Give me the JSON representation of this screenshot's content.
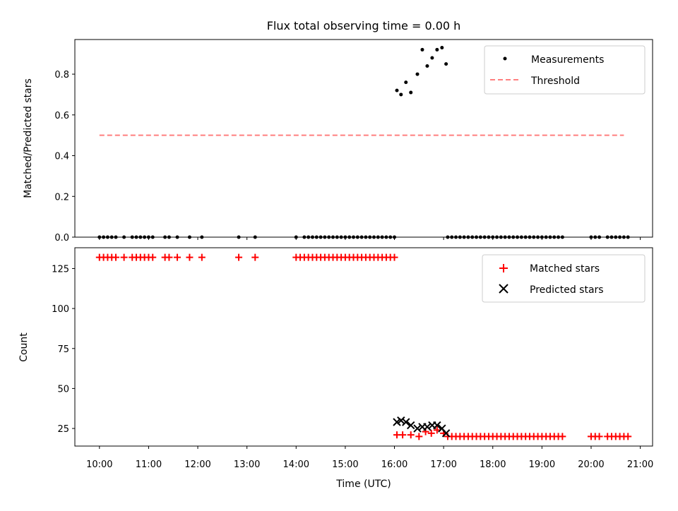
{
  "chart_data": [
    {
      "type": "scatter",
      "title": "Flux total observing time = 0.00 h",
      "xlabel": "",
      "ylabel": "Matched/Predicted stars",
      "xlim": [
        "09:30",
        "21:15"
      ],
      "ylim": [
        0.0,
        0.97
      ],
      "yticks": [
        "0.0",
        "0.2",
        "0.4",
        "0.6",
        "0.8"
      ],
      "legend": {
        "position": "top-right",
        "entries": [
          "Measurements",
          "Threshold"
        ]
      },
      "colors": {
        "measurements": "#000000",
        "threshold": "#ff7f7f"
      },
      "threshold": {
        "value": 0.5,
        "x_start": "10:00",
        "x_end": "20:40"
      },
      "measurements": {
        "x": [
          "10:00",
          "10:05",
          "10:10",
          "10:15",
          "10:20",
          "10:30",
          "10:40",
          "10:45",
          "10:50",
          "10:55",
          "11:00",
          "11:05",
          "11:20",
          "11:25",
          "11:35",
          "11:50",
          "12:05",
          "12:50",
          "13:10",
          "14:00",
          "14:10",
          "14:15",
          "14:20",
          "14:25",
          "14:30",
          "14:35",
          "14:40",
          "14:45",
          "14:50",
          "14:55",
          "15:00",
          "15:05",
          "15:10",
          "15:15",
          "15:20",
          "15:25",
          "15:30",
          "15:35",
          "15:40",
          "15:45",
          "15:50",
          "15:55",
          "16:00",
          "16:03",
          "16:08",
          "16:14",
          "16:20",
          "16:28",
          "16:34",
          "16:40",
          "16:46",
          "16:52",
          "16:58",
          "17:03",
          "17:05",
          "17:10",
          "17:15",
          "17:20",
          "17:25",
          "17:30",
          "17:35",
          "17:40",
          "17:45",
          "17:50",
          "17:55",
          "18:00",
          "18:05",
          "18:10",
          "18:15",
          "18:20",
          "18:25",
          "18:30",
          "18:35",
          "18:40",
          "18:45",
          "18:50",
          "18:55",
          "19:00",
          "19:05",
          "19:10",
          "19:15",
          "19:20",
          "19:25",
          "20:00",
          "20:05",
          "20:10",
          "20:20",
          "20:25",
          "20:30",
          "20:35",
          "20:40",
          "20:45"
        ],
        "y": [
          0,
          0,
          0,
          0,
          0,
          0,
          0,
          0,
          0,
          0,
          0,
          0,
          0,
          0,
          0,
          0,
          0,
          0,
          0,
          0,
          0,
          0,
          0,
          0,
          0,
          0,
          0,
          0,
          0,
          0,
          0,
          0,
          0,
          0,
          0,
          0,
          0,
          0,
          0,
          0,
          0,
          0,
          0,
          0.72,
          0.7,
          0.76,
          0.71,
          0.8,
          0.92,
          0.84,
          0.88,
          0.92,
          0.93,
          0.85,
          0,
          0,
          0,
          0,
          0,
          0,
          0,
          0,
          0,
          0,
          0,
          0,
          0,
          0,
          0,
          0,
          0,
          0,
          0,
          0,
          0,
          0,
          0,
          0,
          0,
          0,
          0,
          0,
          0,
          0,
          0,
          0,
          0,
          0,
          0,
          0,
          0,
          0
        ]
      }
    },
    {
      "type": "scatter",
      "title": "",
      "xlabel": "Time (UTC)",
      "ylabel": "Count",
      "xlim": [
        "09:30",
        "21:15"
      ],
      "ylim": [
        14,
        138
      ],
      "yticks": [
        "25",
        "50",
        "75",
        "100",
        "125"
      ],
      "xticks": [
        "10:00",
        "11:00",
        "12:00",
        "13:00",
        "14:00",
        "15:00",
        "16:00",
        "17:00",
        "18:00",
        "19:00",
        "20:00",
        "21:00"
      ],
      "legend": {
        "position": "top-right",
        "entries": [
          "Matched stars",
          "Predicted stars"
        ]
      },
      "colors": {
        "matched": "#ff0000",
        "predicted": "#000000"
      },
      "matched": {
        "x": [
          "10:00",
          "10:05",
          "10:10",
          "10:15",
          "10:20",
          "10:30",
          "10:40",
          "10:45",
          "10:50",
          "10:55",
          "11:00",
          "11:05",
          "11:20",
          "11:25",
          "11:35",
          "11:50",
          "12:05",
          "12:50",
          "13:10",
          "14:00",
          "14:05",
          "14:10",
          "14:15",
          "14:20",
          "14:25",
          "14:30",
          "14:35",
          "14:40",
          "14:45",
          "14:50",
          "14:55",
          "15:00",
          "15:05",
          "15:10",
          "15:15",
          "15:20",
          "15:25",
          "15:30",
          "15:35",
          "15:40",
          "15:45",
          "15:50",
          "15:55",
          "16:00",
          "16:03",
          "16:10",
          "16:20",
          "16:30",
          "16:38",
          "16:45",
          "16:52",
          "17:00",
          "17:05",
          "17:10",
          "17:15",
          "17:20",
          "17:25",
          "17:30",
          "17:35",
          "17:40",
          "17:45",
          "17:50",
          "17:55",
          "18:00",
          "18:05",
          "18:10",
          "18:15",
          "18:20",
          "18:25",
          "18:30",
          "18:35",
          "18:40",
          "18:45",
          "18:50",
          "18:55",
          "19:00",
          "19:05",
          "19:10",
          "19:15",
          "19:20",
          "19:25",
          "20:00",
          "20:05",
          "20:10",
          "20:20",
          "20:25",
          "20:30",
          "20:35",
          "20:40",
          "20:45"
        ],
        "y": [
          132,
          132,
          132,
          132,
          132,
          132,
          132,
          132,
          132,
          132,
          132,
          132,
          132,
          132,
          132,
          132,
          132,
          132,
          132,
          132,
          132,
          132,
          132,
          132,
          132,
          132,
          132,
          132,
          132,
          132,
          132,
          132,
          132,
          132,
          132,
          132,
          132,
          132,
          132,
          132,
          132,
          132,
          132,
          132,
          21,
          21,
          21,
          20,
          23,
          22,
          24,
          22,
          20,
          20,
          20,
          20,
          20,
          20,
          20,
          20,
          20,
          20,
          20,
          20,
          20,
          20,
          20,
          20,
          20,
          20,
          20,
          20,
          20,
          20,
          20,
          20,
          20,
          20,
          20,
          20,
          20,
          20,
          20,
          20,
          20,
          20,
          20,
          20,
          20,
          20
        ]
      },
      "predicted": {
        "x": [
          "16:03",
          "16:08",
          "16:14",
          "16:20",
          "16:28",
          "16:34",
          "16:40",
          "16:46",
          "16:52",
          "16:58",
          "17:03"
        ],
        "y": [
          29,
          30,
          29,
          27,
          25,
          26,
          26,
          27,
          27,
          25,
          22
        ]
      }
    }
  ]
}
